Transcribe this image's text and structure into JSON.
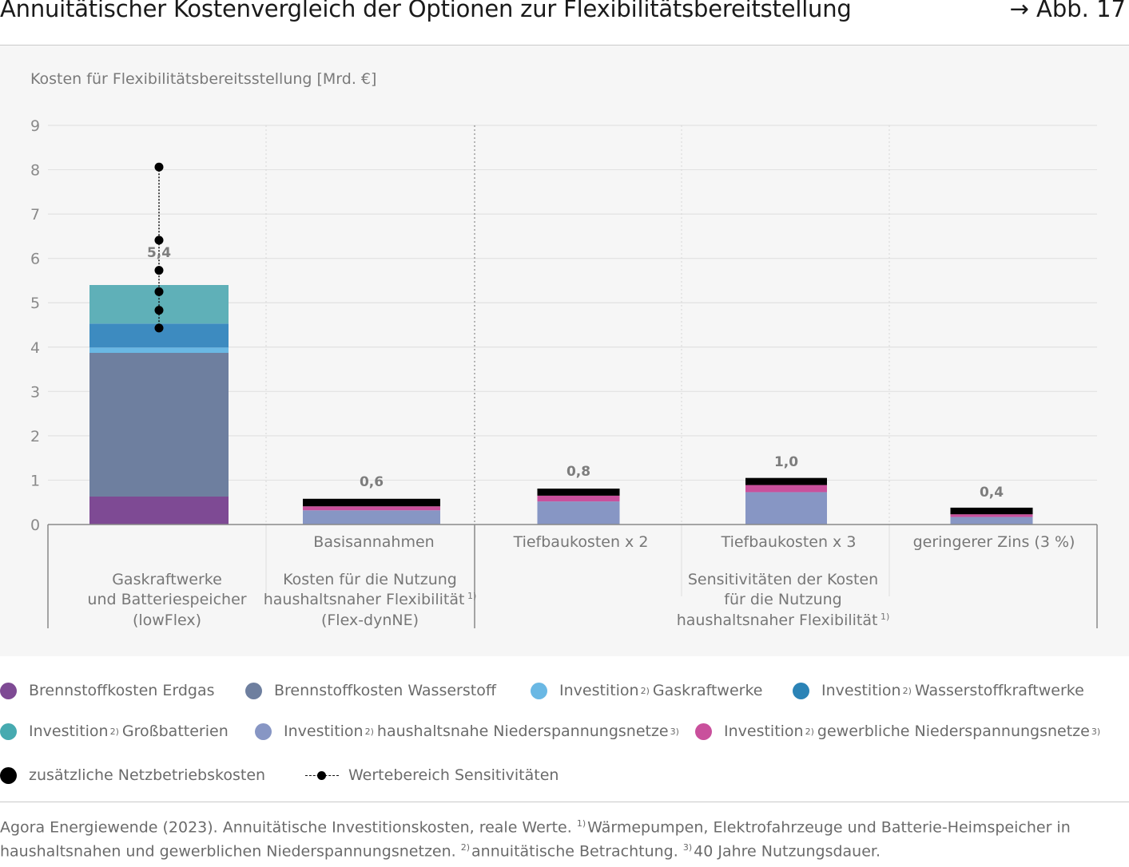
{
  "header": {
    "title": "Annuitätischer Kostenvergleich der Optionen zur Flexibilitätsbereitstellung",
    "figure_ref": "→ Abb. 17"
  },
  "chart_data": {
    "type": "bar",
    "stacked": true,
    "ylabel": "Kosten für Flexibilitätsbereitsstellung [Mrd. €]",
    "ylim": [
      0,
      9
    ],
    "yticks": [
      "0",
      "1",
      "2",
      "3",
      "4",
      "5",
      "6",
      "7",
      "8",
      "9"
    ],
    "categories": [
      "lowFlex",
      "Basisannahmen",
      "Tiefbaukosten x 2",
      "Tiefbaukosten x 3",
      "geringerer Zins (3 %)"
    ],
    "category_labels": [
      "",
      "Basisannahmen",
      "Tiefbaukosten x 2",
      "Tiefbaukosten x 3",
      "geringerer Zins (3 %)"
    ],
    "groups": [
      {
        "lines": [
          "Gaskraftwerke",
          "und Batteriespeicher",
          "(lowFlex)"
        ],
        "sup": ""
      },
      {
        "lines": [
          "Kosten für die Nutzung",
          "haushaltsnaher Flexibilität",
          "(Flex-dynNE)"
        ],
        "sup": "1)"
      },
      {
        "lines": [
          "Sensitivitäten der Kosten",
          "für die Nutzung",
          "haushaltsnaher Flexibilität"
        ],
        "sup": "1)"
      }
    ],
    "totals": [
      "5,4",
      "0,6",
      "0,8",
      "1,0",
      "0,4"
    ],
    "series": [
      {
        "name": "Brennstoffkosten Erdgas",
        "color": "#7e4a94",
        "values": [
          0.63,
          0,
          0,
          0,
          0
        ]
      },
      {
        "name": "Brennstoffkosten Wasserstoff",
        "color": "#6e7f9f",
        "values": [
          3.24,
          0,
          0,
          0,
          0
        ]
      },
      {
        "name": "Investition Gaskraftwerke",
        "color": "#6ab8e4",
        "values": [
          0.12,
          0,
          0,
          0,
          0
        ]
      },
      {
        "name": "Investition Wasserstoffkraftwerke",
        "color": "#3d8bc0",
        "values": [
          0.54,
          0,
          0,
          0,
          0
        ]
      },
      {
        "name": "Investition Großbatterien",
        "color": "#5fb0b8",
        "values": [
          0.87,
          0,
          0,
          0,
          0
        ]
      },
      {
        "name": "Investition haushaltsnahe Niederspannungsnetze",
        "color": "#8796c4",
        "values": [
          0,
          0.32,
          0.52,
          0.73,
          0.17
        ]
      },
      {
        "name": "Investition gewerbliche Niederspannungsnetze",
        "color": "#c9509c",
        "values": [
          0,
          0.09,
          0.13,
          0.16,
          0.06
        ]
      },
      {
        "name": "zusätzliche Netzbetriebskosten",
        "color": "#000000",
        "values": [
          0,
          0.17,
          0.16,
          0.16,
          0.15
        ]
      }
    ],
    "sensitivity_range": {
      "name": "Wertebereich Sensitivitäten",
      "category": "lowFlex",
      "values": [
        4.43,
        4.83,
        5.25,
        5.73,
        6.41,
        8.06
      ]
    }
  },
  "legend": {
    "items": [
      {
        "label": "Brennstoffkosten Erdgas",
        "sup": "",
        "rest": "",
        "color": "#7e4a94"
      },
      {
        "label": "Brennstoffkosten Wasserstoff",
        "sup": "",
        "rest": "",
        "color": "#6e7f9f"
      },
      {
        "label": "Investition",
        "sup": "2)",
        "rest": "Gaskraftwerke",
        "color": "#6ab8e4"
      },
      {
        "label": "Investition",
        "sup": "2)",
        "rest": "Wasserstoffkraftwerke",
        "color": "#2b83b6"
      },
      {
        "label": "Investition",
        "sup": "2)",
        "rest": "Großbatterien",
        "color": "#46aab0"
      },
      {
        "label": "Investition",
        "sup": "2)",
        "rest": "haushaltsnahe Niederspannungsnetze",
        "sup2": "3)",
        "color": "#8796c4"
      },
      {
        "label": "Investition",
        "sup": "2)",
        "rest": "gewerbliche Niederspannungsnetze",
        "sup2": "3)",
        "color": "#c9509c"
      },
      {
        "label": "zusätzliche Netzbetriebskosten",
        "sup": "",
        "rest": "",
        "color": "#000000"
      },
      {
        "label": "Wertebereich Sensitivitäten",
        "sup": "",
        "rest": "",
        "color": "#000000"
      }
    ]
  },
  "footer": {
    "part1": "Agora Energiewende (2023). Annuitätische Investitionskosten, reale Werte.",
    "sup1": "1)",
    "part2": "Wärmepumpen, Elektrofahrzeuge und Batterie-Heimspeicher in haushaltsnahen und gewerblichen Niederspannungsnetzen.",
    "sup2": "2)",
    "part3": "annuitätische Betrachtung.",
    "sup3": "3)",
    "part4": "40 Jahre Nutzungsdauer."
  }
}
